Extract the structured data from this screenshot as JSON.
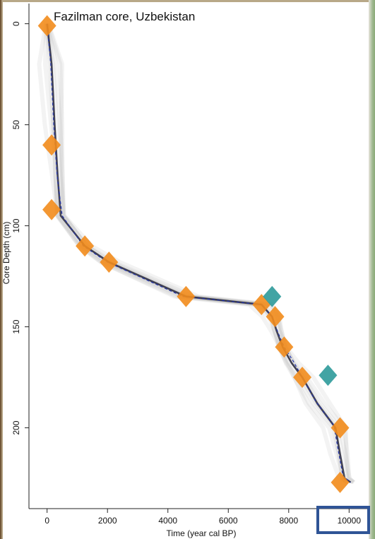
{
  "chart_data": {
    "type": "line",
    "title": "Fazilman core, Uzbekistan",
    "xlabel": "Time (year cal BP)",
    "ylabel": "Core Depth (cm)",
    "xlim": [
      -600,
      10600
    ],
    "ylim": [
      240,
      -10
    ],
    "y_inverted": true,
    "xticks": [
      0,
      2000,
      4000,
      6000,
      8000,
      10000
    ],
    "yticks": [
      0,
      50,
      100,
      150,
      200
    ],
    "grid": false,
    "legend": "none",
    "series": [
      {
        "role": "age-depth median (solid)",
        "color": "#1a1a2e",
        "points": [
          [
            0,
            0
          ],
          [
            150,
            20
          ],
          [
            250,
            50
          ],
          [
            350,
            75
          ],
          [
            450,
            95
          ],
          [
            1250,
            110
          ],
          [
            2050,
            118
          ],
          [
            4600,
            135
          ],
          [
            7100,
            139
          ],
          [
            7450,
            145
          ],
          [
            7600,
            152
          ],
          [
            7800,
            160
          ],
          [
            8100,
            168
          ],
          [
            8450,
            175
          ],
          [
            8950,
            188
          ],
          [
            9550,
            200
          ],
          [
            9700,
            213
          ],
          [
            9850,
            225
          ],
          [
            10050,
            227
          ]
        ]
      },
      {
        "role": "age-depth mean (dashed)",
        "color": "#2233aa",
        "points": [
          [
            0,
            0
          ],
          [
            120,
            20
          ],
          [
            220,
            50
          ],
          [
            330,
            75
          ],
          [
            500,
            95
          ],
          [
            1200,
            110
          ],
          [
            2000,
            118
          ],
          [
            4500,
            135
          ],
          [
            7100,
            139
          ],
          [
            7450,
            145
          ],
          [
            7650,
            153
          ],
          [
            7850,
            160
          ],
          [
            8150,
            167
          ],
          [
            8450,
            175
          ],
          [
            8900,
            187
          ],
          [
            9500,
            199
          ],
          [
            9650,
            212
          ],
          [
            9800,
            224
          ],
          [
            10050,
            227
          ]
        ]
      }
    ],
    "dates_terrestrial": [
      {
        "age": 0,
        "depth": 1
      },
      {
        "age": 150,
        "depth": 60
      },
      {
        "age": 150,
        "depth": 92
      },
      {
        "age": 1250,
        "depth": 110
      },
      {
        "age": 2050,
        "depth": 118
      },
      {
        "age": 4600,
        "depth": 135
      },
      {
        "age": 7100,
        "depth": 139
      },
      {
        "age": 7550,
        "depth": 145
      },
      {
        "age": 7850,
        "depth": 160
      },
      {
        "age": 8450,
        "depth": 175
      },
      {
        "age": 9700,
        "depth": 200
      },
      {
        "age": 9700,
        "depth": 227
      }
    ],
    "dates_outlier": [
      {
        "age": 7450,
        "depth": 135
      },
      {
        "age": 9300,
        "depth": 174
      }
    ],
    "colors": {
      "terrestrial": "#f28c1c",
      "outlier": "#2e9a9a",
      "envelope": "#9a9a9a",
      "median": "#1a1a2e",
      "mean": "#2233aa",
      "highlight": "#2f5496"
    }
  }
}
